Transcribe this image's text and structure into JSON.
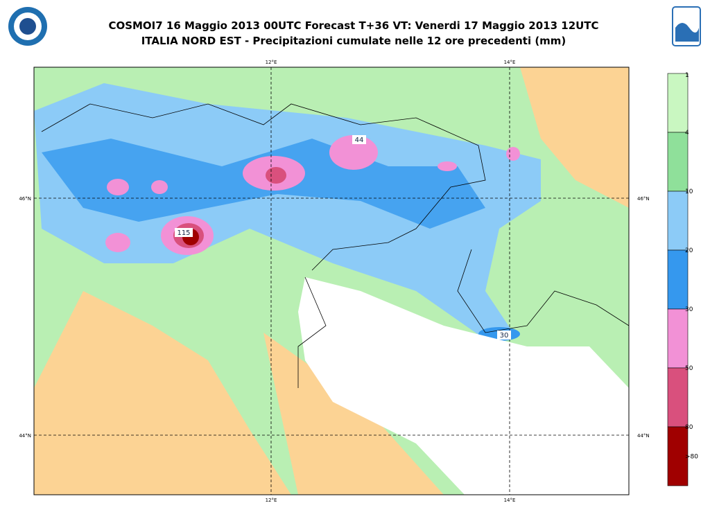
{
  "header": {
    "title": "COSMOI7 16 Maggio 2013 00UTC Forecast T+36 VT: Venerdi 17 Maggio 2013 12UTC",
    "subtitle": "ITALIA NORD EST - Precipitazioni cumulate nelle 12 ore precedenti (mm)"
  },
  "map": {
    "longitudes": [
      "12°E",
      "14°E"
    ],
    "latitudes": [
      "46°N",
      "44°N"
    ],
    "labels": [
      "115",
      "44",
      "30"
    ]
  },
  "legend": {
    "levels": [
      {
        "label": "1",
        "color": "#c9f7c1"
      },
      {
        "label": "4",
        "color": "#8fe09a"
      },
      {
        "label": "10",
        "color": "#8ccbf7"
      },
      {
        "label": "20",
        "color": "#3598ee"
      },
      {
        "label": "30",
        "color": "#f291d6"
      },
      {
        "label": "50",
        "color": "#d9507d"
      },
      {
        "label": "80",
        "color": "#a00000"
      }
    ],
    "last_label": ">80"
  }
}
